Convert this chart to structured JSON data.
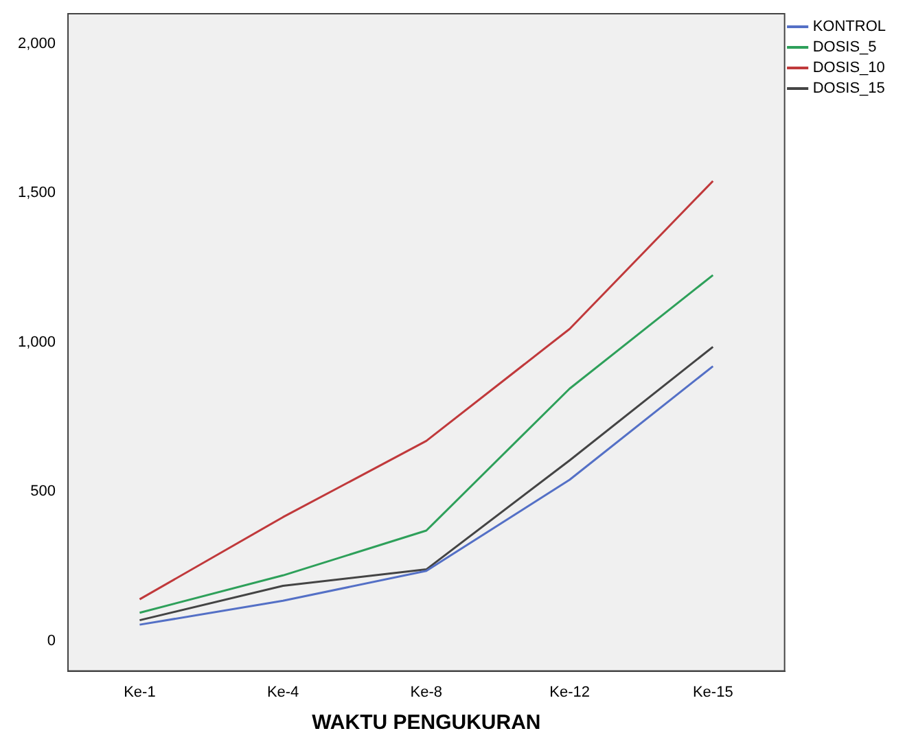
{
  "chart_data": {
    "type": "line",
    "xlabel": "WAKTU PENGUKURAN",
    "categories": [
      "Ke-1",
      "Ke-4",
      "Ke-8",
      "Ke-12",
      "Ke-15"
    ],
    "series": [
      {
        "name": "KONTROL",
        "color": "#5470c6",
        "values": [
          55,
          135,
          235,
          540,
          920
        ]
      },
      {
        "name": "DOSIS_5",
        "color": "#2ea05a",
        "values": [
          95,
          220,
          370,
          845,
          1225
        ]
      },
      {
        "name": "DOSIS_10",
        "color": "#c0393b",
        "values": [
          140,
          415,
          670,
          1045,
          1540
        ]
      },
      {
        "name": "DOSIS_15",
        "color": "#444444",
        "values": [
          70,
          185,
          240,
          605,
          985
        ]
      }
    ],
    "ylim": [
      -100,
      2100
    ],
    "yticks": [
      0,
      {
        "value": 500,
        "label": "500"
      },
      {
        "value": 1000,
        "label": "1,000"
      },
      {
        "value": 1500,
        "label": "1,500"
      },
      {
        "value": 2000,
        "label": "2,000"
      }
    ],
    "grid": false,
    "legend": "top right",
    "marker": "none",
    "line_style": "solid"
  }
}
